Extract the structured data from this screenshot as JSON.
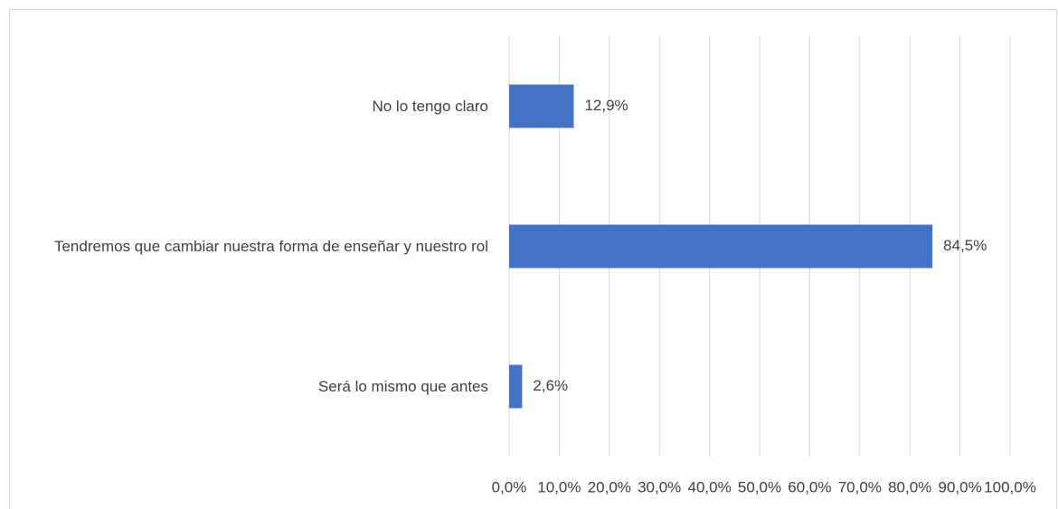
{
  "chart_data": {
    "type": "barh",
    "categories": [
      "No lo tengo claro",
      "Tendremos que cambiar nuestra forma de enseñar y nuestro rol",
      "Será lo mismo que antes"
    ],
    "values": [
      12.9,
      84.5,
      2.6
    ],
    "value_labels": [
      "12,9%",
      "84,5%",
      "2,6%"
    ],
    "color": "#4472c4",
    "xlim": [
      0,
      100
    ],
    "xticks": [
      {
        "value": 0,
        "label": "0,0%"
      },
      {
        "value": 10,
        "label": "10,0%"
      },
      {
        "value": 20,
        "label": "20,0%"
      },
      {
        "value": 30,
        "label": "30,0%"
      },
      {
        "value": 40,
        "label": "40,0%"
      },
      {
        "value": 50,
        "label": "50,0%"
      },
      {
        "value": 60,
        "label": "60,0%"
      },
      {
        "value": 70,
        "label": "70,0%"
      },
      {
        "value": 80,
        "label": "80,0%"
      },
      {
        "value": 90,
        "label": "90,0%"
      },
      {
        "value": 100,
        "label": "100,0%"
      }
    ],
    "grid": true
  }
}
